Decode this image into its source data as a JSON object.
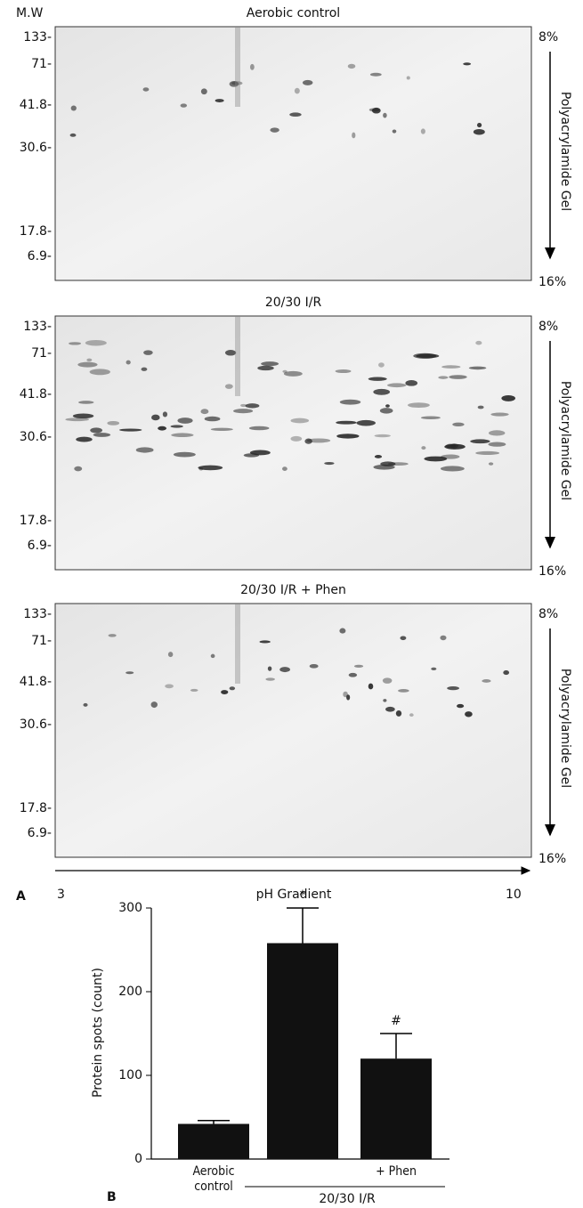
{
  "gels": {
    "mw_label": "M.W",
    "panels": [
      {
        "title": "Aerobic control",
        "mw": [
          "133-",
          "71-",
          "41.8-",
          "30.6-",
          "17.8-",
          "6.9-"
        ],
        "top": "8%",
        "bottom": "16%",
        "axis": "Polyacrylamide Gel"
      },
      {
        "title": "20/30 I/R",
        "mw": [
          "133-",
          "71-",
          "41.8-",
          "30.6-",
          "17.8-",
          "6.9-"
        ],
        "top": "8%",
        "bottom": "16%",
        "axis": "Polyacrylamide Gel"
      },
      {
        "title": "20/30 I/R + Phen",
        "mw": [
          "133-",
          "71-",
          "41.8-",
          "30.6-",
          "17.8-",
          "6.9-"
        ],
        "top": "8%",
        "bottom": "16%",
        "axis": "Polyacrylamide Gel"
      }
    ],
    "ph_start": "3",
    "ph_end": "10",
    "ph_label": "pH Gradient",
    "panel_label": "A"
  },
  "chart_data": {
    "type": "bar",
    "panel_label": "B",
    "ylabel": "Protein spots (count)",
    "categories": [
      "Aerobic control",
      null,
      "+ Phen"
    ],
    "group_label": "20/30 I/R",
    "values": [
      42,
      258,
      120
    ],
    "errors": [
      4,
      42,
      30
    ],
    "markers": [
      null,
      "*",
      "#"
    ],
    "color": "#111111",
    "ylim": [
      0,
      300
    ],
    "yticks": [
      0,
      100,
      200,
      300
    ]
  }
}
